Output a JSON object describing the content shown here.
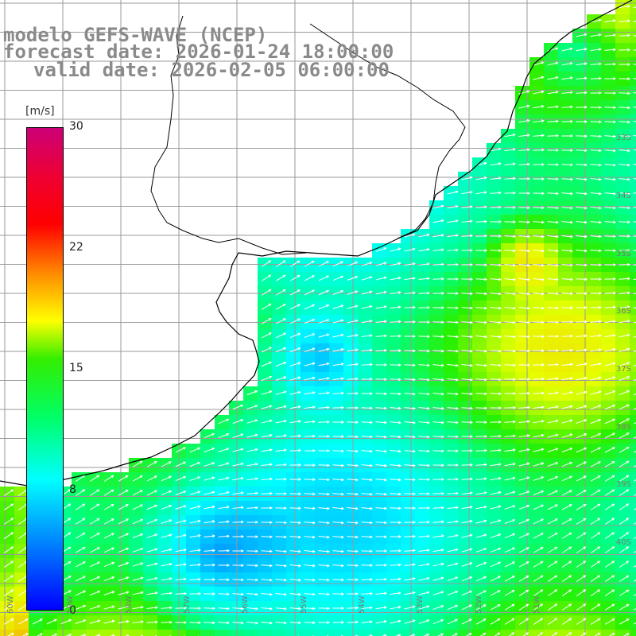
{
  "title": {
    "line1": "modelo GEFS-WAVE (NCEP)",
    "line2": "forecast date: 2026-01-24 18:00:00",
    "line3": "valid date: 2026-02-05 06:00:00"
  },
  "colorbar": {
    "unit": "[m/s]",
    "ticks": [
      "30",
      "22",
      "15",
      "8",
      "0"
    ]
  },
  "lat_labels": [
    "33S",
    "34S",
    "35S",
    "36S",
    "37S",
    "38S",
    "39S",
    "40S"
  ],
  "lon_labels": [
    "60W",
    "59W",
    "58W",
    "57W",
    "56W",
    "55W",
    "54W",
    "53W",
    "52W",
    "51W"
  ]
}
